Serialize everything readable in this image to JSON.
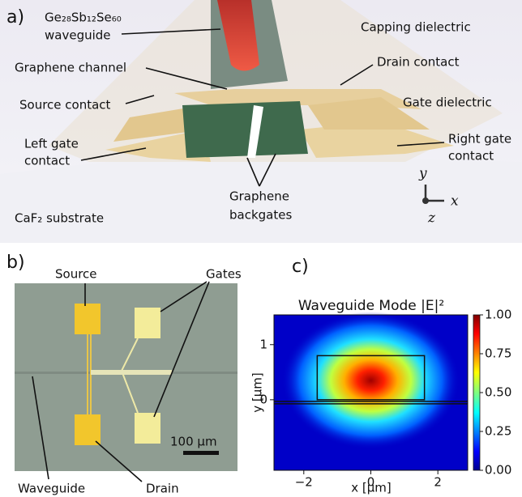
{
  "panel_a": {
    "label": "a)",
    "waveguide_formula": "Ge₂₈Sb₁₂Se₆₀",
    "waveguide": "waveguide",
    "capping_dielectric": "Capping dielectric",
    "graphene_channel": "Graphene channel",
    "drain_contact": "Drain contact",
    "source_contact": "Source contact",
    "gate_dielectric": "Gate dielectric",
    "left_gate": [
      "Left gate",
      "contact"
    ],
    "right_gate": [
      "Right gate",
      "contact"
    ],
    "graphene_backgates": [
      "Graphene",
      "backgates"
    ],
    "substrate": "CaF₂ substrate",
    "axes": {
      "y": "y",
      "x": "x",
      "z": "z"
    }
  },
  "panel_b": {
    "label": "b)",
    "source": "Source",
    "gates": "Gates",
    "waveguide": "Waveguide",
    "drain": "Drain",
    "scale_bar": "100 μm"
  },
  "panel_c": {
    "label": "c)",
    "title": "Waveguide Mode |E|²",
    "x_label": "x [μm]",
    "y_label": "y [μm]",
    "xlim": [
      -2.89,
      2.89
    ],
    "ylim": [
      -1.28,
      1.54
    ],
    "xticks": [
      {
        "value": -2,
        "label": "−2"
      },
      0,
      2
    ],
    "yticks": [
      0,
      1
    ],
    "clim": [
      0,
      1
    ],
    "cticks": [
      {
        "value": 0,
        "label": "0.00"
      },
      {
        "value": 0.25,
        "label": "0.25"
      },
      {
        "value": 0.5,
        "label": "0.50"
      },
      {
        "value": 0.75,
        "label": "0.75"
      },
      {
        "value": 1,
        "label": "1.00"
      }
    ]
  }
}
